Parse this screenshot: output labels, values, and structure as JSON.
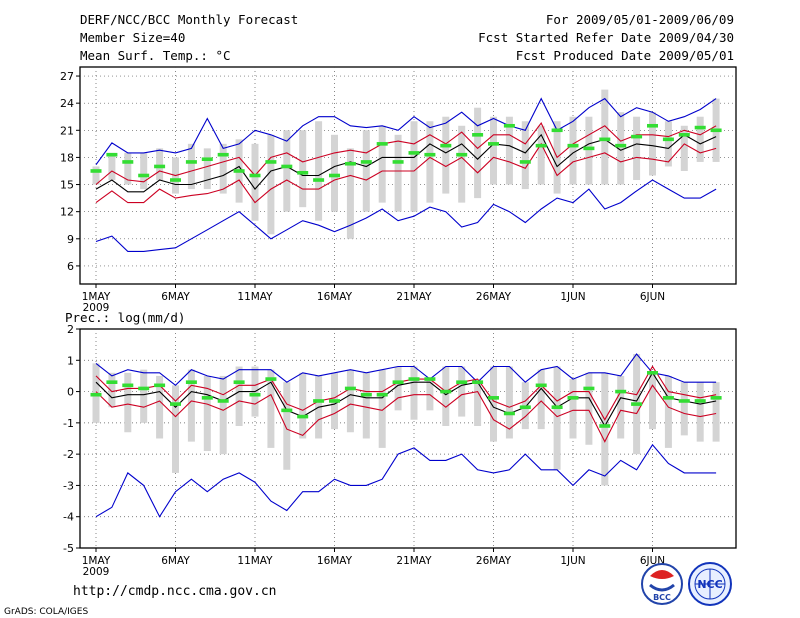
{
  "header": {
    "title": "DERF/NCC/BCC Monthly Forecast",
    "member_size": "Member Size=40",
    "variable_label": "Mean Surf. Temp.: °C",
    "forecast_period": "For 2009/05/01-2009/06/09",
    "fcst_started": "Fcst Started Refer Date 2009/04/30",
    "fcst_produced": "Fcst Produced Date 2009/05/01"
  },
  "footer": {
    "url": "http://cmdp.ncc.cma.gov.cn",
    "credit": "GrADS: COLA/IGES",
    "logo_left_text": "BCC",
    "logo_right_text": "NCC"
  },
  "colors": {
    "ensemble_max_min": "#0000cc",
    "ensemble_mean": "#000000",
    "spread_band": "#cc0022",
    "observation_marker": "#33dd33",
    "member_range_bar": "#d4d4d4",
    "grid": "#555555"
  },
  "chart_data": [
    {
      "type": "line",
      "title": "Mean Surf. Temp.: °C",
      "x_start": "2009-05-01",
      "x_tick_labels": [
        "1MAY",
        "6MAY",
        "11MAY",
        "16MAY",
        "21MAY",
        "26MAY",
        "1JUN",
        "6JUN"
      ],
      "x_year_label": "2009",
      "y_tick_labels": [
        "6",
        "9",
        "12",
        "15",
        "18",
        "21",
        "24",
        "27"
      ],
      "ylim": [
        4,
        28
      ],
      "grid": true,
      "x_days": 40,
      "series": [
        {
          "name": "max",
          "values": [
            8.7,
            9.3,
            7.6,
            7.6,
            7.8,
            8,
            9,
            10,
            11,
            12,
            10.5,
            9,
            10,
            11,
            10.5,
            9.8,
            10.5,
            11.3,
            12.3,
            11,
            11.5,
            12.5,
            12,
            10.3,
            10.8,
            12.8,
            12,
            10.8,
            12.3,
            13.5,
            13,
            14.5,
            12.3,
            13,
            14.3,
            15.5,
            14.5,
            13.5,
            13.5,
            14.5
          ]
        },
        {
          "name": "upper",
          "values": [
            17.2,
            19.6,
            18.5,
            18.5,
            18.8,
            18.5,
            19,
            22.3,
            19,
            19.5,
            21,
            20.5,
            19.8,
            21.5,
            22.5,
            22.5,
            21.5,
            21.3,
            21.5,
            21,
            22.5,
            21.3,
            21.8,
            23,
            21.5,
            22.3,
            21.5,
            21,
            24.5,
            21,
            22,
            23.5,
            24.5,
            22.5,
            23.5,
            23,
            22,
            22.5,
            23.3,
            24.5
          ]
        },
        {
          "name": "hi",
          "values": [
            15,
            16.5,
            15.5,
            15.3,
            16.5,
            16,
            16.5,
            17,
            17.5,
            18,
            16,
            18,
            18.5,
            17.5,
            18,
            18.5,
            18.8,
            18.5,
            19.5,
            19.8,
            19.5,
            20.5,
            19.5,
            20.8,
            19,
            20.5,
            20.5,
            19.5,
            21.8,
            18,
            19.5,
            20.5,
            21.5,
            19.8,
            20.5,
            20.5,
            20.3,
            21,
            20.5,
            21.5
          ]
        },
        {
          "name": "mean",
          "values": [
            14.5,
            15.5,
            14.2,
            14.2,
            15.5,
            15,
            15,
            15.5,
            16,
            17,
            14.5,
            16.5,
            17,
            16,
            16,
            17,
            17.5,
            17,
            18,
            18,
            18,
            19.5,
            18.5,
            19.5,
            17.8,
            19.5,
            19.3,
            18.5,
            20.5,
            17,
            18.5,
            19.5,
            20,
            18.8,
            19.5,
            19.3,
            19,
            20.5,
            19.5,
            20.3
          ]
        },
        {
          "name": "lo",
          "values": [
            13,
            14.3,
            13,
            13,
            14.5,
            13.5,
            13.8,
            14,
            14.5,
            15.5,
            13,
            14.5,
            15.5,
            14.5,
            14.5,
            15.5,
            16,
            15.5,
            16.5,
            16.5,
            16.5,
            18,
            17,
            18,
            16.3,
            18,
            17.5,
            16.8,
            19.5,
            16,
            17.5,
            18,
            18.5,
            17.5,
            18,
            17.8,
            17.5,
            19.5,
            18.5,
            19
          ]
        },
        {
          "name": "observation",
          "values": [
            16.5,
            18.3,
            17.5,
            16,
            17,
            15.5,
            17.5,
            17.8,
            18.3,
            16.5,
            16,
            17.5,
            17,
            16.3,
            15.5,
            16,
            17.3,
            17.5,
            19.5,
            17.5,
            18.5,
            18.3,
            19.3,
            18.3,
            20.5,
            19.5,
            21.5,
            17.5,
            19.3,
            21,
            19.3,
            19,
            20,
            19.3,
            20.3,
            21.5,
            20,
            20.5,
            21.3,
            21
          ]
        },
        {
          "name": "range_low",
          "values": [
            15,
            15.5,
            15,
            14.5,
            15.5,
            14,
            14.5,
            14.5,
            14,
            13,
            11,
            9.5,
            12,
            12.5,
            11,
            12,
            9,
            12,
            13,
            12,
            12,
            13,
            14,
            13,
            13.5,
            15,
            15,
            14.5,
            15,
            14,
            15,
            15,
            15,
            15,
            15.5,
            16,
            17,
            16.5,
            17.5,
            17.5
          ]
        },
        {
          "name": "range_high",
          "values": [
            17,
            18.5,
            18.5,
            18.5,
            19,
            18,
            19.5,
            19,
            19.5,
            20,
            19.5,
            20.5,
            21,
            21,
            22,
            20.5,
            19,
            21,
            21.5,
            20.5,
            22,
            22,
            22.5,
            21.5,
            23.5,
            22.5,
            22.5,
            22,
            21.5,
            22,
            22.5,
            22.5,
            25.5,
            23,
            22.5,
            23,
            22,
            21.5,
            22.5,
            24.5
          ]
        }
      ]
    },
    {
      "type": "line",
      "title": "Prec.: log(mm/d)",
      "x_start": "2009-05-01",
      "x_tick_labels": [
        "1MAY",
        "6MAY",
        "11MAY",
        "16MAY",
        "21MAY",
        "26MAY",
        "1JUN",
        "6JUN"
      ],
      "x_year_label": "2009",
      "y_tick_labels": [
        "-5",
        "-4",
        "-3",
        "-2",
        "-1",
        "0",
        "1",
        "2"
      ],
      "ylim": [
        -5,
        2
      ],
      "grid": true,
      "x_days": 40,
      "series": [
        {
          "name": "min",
          "values": [
            -4,
            -3.7,
            -2.6,
            -3,
            -4,
            -3.2,
            -2.8,
            -3.2,
            -2.8,
            -2.6,
            -2.9,
            -3.5,
            -3.8,
            -3.2,
            -3.2,
            -2.8,
            -3,
            -3,
            -2.8,
            -2,
            -1.8,
            -2.2,
            -2.2,
            -2,
            -2.5,
            -2.6,
            -2.5,
            -2,
            -2.5,
            -2.5,
            -3,
            -2.5,
            -2.7,
            -2.2,
            -2.5,
            -1.7,
            -2.3,
            -2.6,
            -2.6,
            -2.6
          ]
        },
        {
          "name": "upper",
          "values": [
            0.9,
            0.5,
            0.7,
            0.6,
            0.6,
            0.2,
            0.7,
            0.5,
            0.4,
            0.7,
            0.7,
            0.7,
            0.3,
            0.6,
            0.5,
            0.6,
            0.7,
            0.6,
            0.7,
            0.8,
            0.8,
            0.4,
            0.8,
            0.8,
            0.3,
            0.8,
            0.8,
            0.3,
            0.7,
            0.8,
            0.4,
            0.6,
            0.6,
            0.5,
            1.2,
            0.6,
            0.5,
            0.3,
            0.3,
            0.3
          ]
        },
        {
          "name": "hi",
          "values": [
            0.5,
            0,
            0.1,
            0.1,
            0.2,
            -0.3,
            0.2,
            0.1,
            -0.1,
            0.2,
            0.2,
            0.4,
            -0.4,
            -0.6,
            -0.3,
            -0.2,
            0.1,
            0,
            0,
            0.3,
            0.4,
            0.4,
            0,
            0.3,
            0.4,
            -0.3,
            -0.5,
            -0.3,
            0.2,
            -0.3,
            0,
            0,
            -0.9,
            0,
            -0.1,
            0.8,
            0,
            -0.1,
            -0.2,
            -0.1
          ]
        },
        {
          "name": "mean",
          "values": [
            0.3,
            -0.2,
            -0.1,
            -0.1,
            0,
            -0.5,
            0,
            -0.1,
            -0.3,
            0,
            0,
            0.3,
            -0.6,
            -0.8,
            -0.5,
            -0.4,
            -0.1,
            -0.2,
            -0.2,
            0.2,
            0.3,
            0.3,
            -0.1,
            0.2,
            0.3,
            -0.5,
            -0.7,
            -0.5,
            0.1,
            -0.5,
            -0.2,
            -0.2,
            -1.1,
            -0.2,
            -0.3,
            0.6,
            -0.2,
            -0.3,
            -0.4,
            -0.3
          ]
        },
        {
          "name": "lo",
          "values": [
            0,
            -0.5,
            -0.4,
            -0.5,
            -0.3,
            -0.8,
            -0.3,
            -0.4,
            -0.6,
            -0.3,
            -0.4,
            -0.1,
            -1.2,
            -1.4,
            -0.9,
            -0.7,
            -0.4,
            -0.5,
            -0.6,
            -0.2,
            -0.1,
            -0.1,
            -0.5,
            -0.1,
            0,
            -0.9,
            -1.2,
            -0.8,
            -0.3,
            -0.8,
            -0.6,
            -0.6,
            -1.6,
            -0.6,
            -0.7,
            0.2,
            -0.5,
            -0.7,
            -0.8,
            -0.7
          ]
        },
        {
          "name": "observation",
          "values": [
            -0.1,
            0.3,
            0.2,
            0.1,
            0.2,
            -0.4,
            0.3,
            -0.2,
            -0.3,
            0.3,
            -0.1,
            0.4,
            -0.6,
            -0.8,
            -0.3,
            -0.3,
            0.1,
            -0.1,
            -0.1,
            0.3,
            0.4,
            0.4,
            0,
            0.3,
            0.3,
            -0.2,
            -0.7,
            -0.5,
            0.2,
            -0.5,
            -0.2,
            0.1,
            -1.1,
            0,
            -0.4,
            0.6,
            -0.2,
            -0.3,
            -0.3,
            -0.2
          ]
        },
        {
          "name": "range_low",
          "values": [
            -1,
            -0.5,
            -1.3,
            -1,
            -1.5,
            -2.6,
            -1.6,
            -1.9,
            -2,
            -1.1,
            -0.8,
            -1.8,
            -2.5,
            -1.5,
            -1.5,
            -1.2,
            -1.3,
            -1.5,
            -1.8,
            -0.6,
            -0.9,
            -0.6,
            -1.1,
            -0.8,
            -1.1,
            -1.6,
            -1.5,
            -1.2,
            -1.2,
            -2.5,
            -1.5,
            -1.7,
            -3,
            -1.5,
            -2,
            -1.2,
            -1.8,
            -1.4,
            -1.6,
            -1.6
          ]
        },
        {
          "name": "range_high",
          "values": [
            0.9,
            0.6,
            0.6,
            0.7,
            0.5,
            0.2,
            0.7,
            0.5,
            0.5,
            0.8,
            0.8,
            0.7,
            0.3,
            0.6,
            0.5,
            0.6,
            0.7,
            0.6,
            0.7,
            0.8,
            0.8,
            0.4,
            0.8,
            0.8,
            0.3,
            0.8,
            0.8,
            0.3,
            0.7,
            0.8,
            0.4,
            0.6,
            0.6,
            0.5,
            1.2,
            0.6,
            0.5,
            0.3,
            0.3,
            0.3
          ]
        }
      ]
    }
  ]
}
